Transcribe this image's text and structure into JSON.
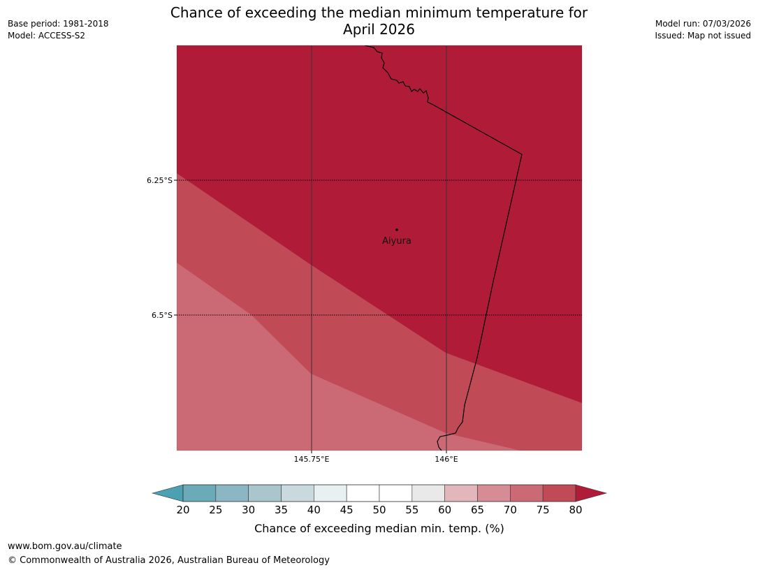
{
  "header": {
    "title_line1": "Chance of exceeding the median minimum temperature for",
    "title_line2": "April 2026",
    "base_period": "Base period: 1981-2018",
    "model": "Model: ACCESS-S2",
    "model_run": "Model run: 07/03/2026",
    "issued": "Issued: Map not issued"
  },
  "map": {
    "latitude_labels": [
      "6.25°S",
      "6.5°S"
    ],
    "longitude_labels": [
      "145.75°E",
      "146°E"
    ],
    "place": {
      "name": "Aiyura"
    },
    "zone_colors": {
      "p80_plus": "#B01C38",
      "p75_80": "#C04A56",
      "p70_75": "#CB6A75"
    }
  },
  "legend": {
    "title": "Chance of exceeding median min. temp. (%)",
    "ticks": [
      "20",
      "25",
      "30",
      "35",
      "40",
      "45",
      "50",
      "55",
      "60",
      "65",
      "70",
      "75",
      "80"
    ],
    "under_color": "#4BA0B2",
    "over_color": "#B01C38",
    "bin_colors": [
      "#6AAAB9",
      "#8BB6C3",
      "#A9C6CC",
      "#C9D9DD",
      "#E9F0F2",
      "#FFFFFF",
      "#FFFFFF",
      "#E9E9E9",
      "#E2B6BB",
      "#D68C95",
      "#CB6A75",
      "#C04A56"
    ]
  },
  "footer": {
    "url": "www.bom.gov.au/climate",
    "copyright": "© Commonwealth of Australia 2026, Australian Bureau of Meteorology"
  }
}
